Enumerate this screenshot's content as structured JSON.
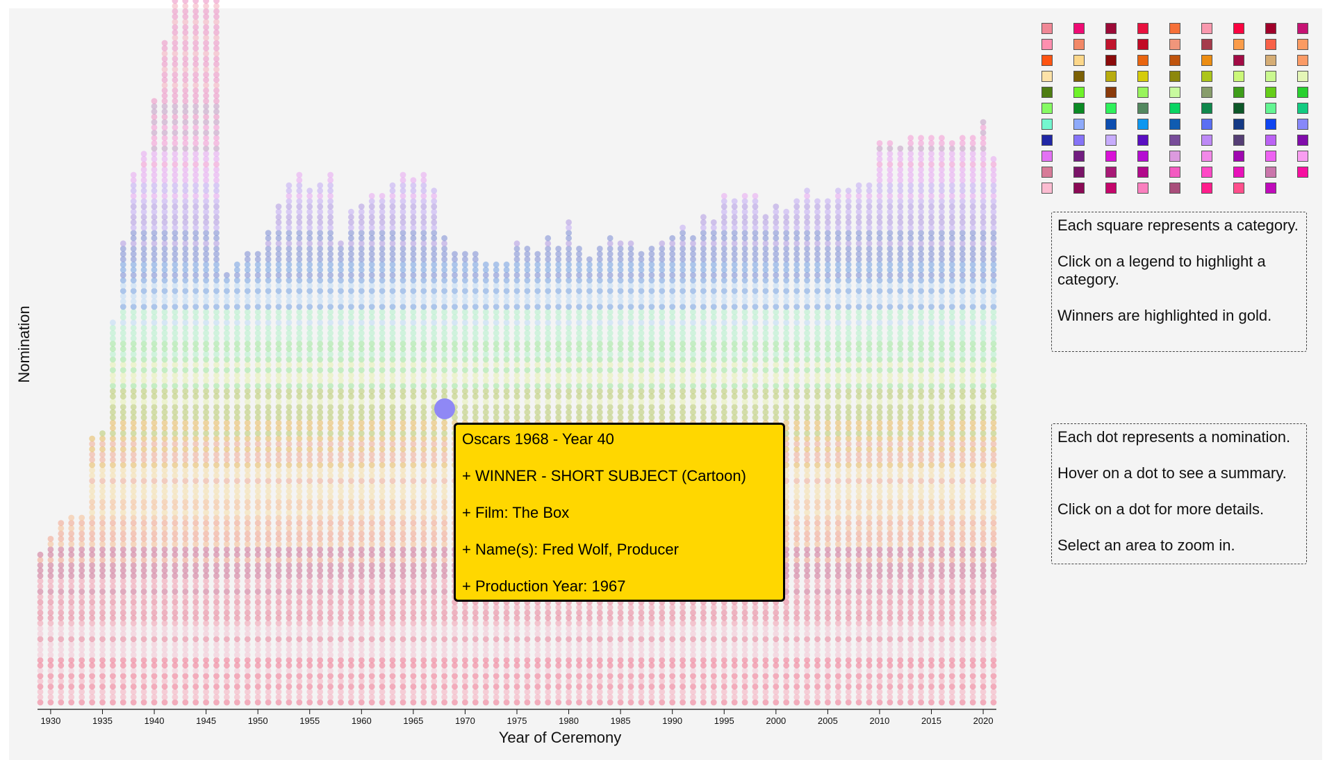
{
  "chart_data": {
    "type": "scatter",
    "title": "",
    "xlabel": "Year of Ceremony",
    "ylabel": "Nomination",
    "xlim": [
      1929,
      2021
    ],
    "x_ticks": [
      1930,
      1935,
      1940,
      1945,
      1950,
      1955,
      1960,
      1965,
      1970,
      1975,
      1980,
      1985,
      1990,
      1995,
      2000,
      2005,
      2010,
      2015,
      2020
    ],
    "years": [
      1929,
      1930,
      1931,
      1932,
      1933,
      1934,
      1935,
      1936,
      1937,
      1938,
      1939,
      1940,
      1941,
      1942,
      1943,
      1944,
      1945,
      1946,
      1947,
      1948,
      1949,
      1950,
      1951,
      1952,
      1953,
      1954,
      1955,
      1956,
      1957,
      1958,
      1959,
      1960,
      1961,
      1962,
      1963,
      1964,
      1965,
      1966,
      1967,
      1968,
      1969,
      1970,
      1971,
      1972,
      1973,
      1974,
      1975,
      1976,
      1977,
      1978,
      1979,
      1980,
      1981,
      1982,
      1983,
      1984,
      1985,
      1986,
      1987,
      1988,
      1989,
      1990,
      1991,
      1992,
      1993,
      1994,
      1995,
      1996,
      1997,
      1998,
      1999,
      2000,
      2001,
      2002,
      2003,
      2004,
      2005,
      2006,
      2007,
      2008,
      2009,
      2010,
      2011,
      2012,
      2013,
      2014,
      2015,
      2016,
      2017,
      2018,
      2019,
      2020,
      2021
    ],
    "nominations": [
      29,
      32,
      35,
      36,
      36,
      51,
      52,
      73,
      88,
      101,
      105,
      115,
      126,
      144,
      158,
      161,
      159,
      137,
      82,
      84,
      86,
      86,
      90,
      95,
      99,
      101,
      98,
      99,
      101,
      88,
      94,
      95,
      97,
      97,
      99,
      101,
      100,
      101,
      98,
      89,
      86,
      86,
      86,
      84,
      84,
      84,
      88,
      87,
      86,
      89,
      87,
      92,
      87,
      85,
      87,
      89,
      88,
      88,
      86,
      87,
      88,
      89,
      91,
      89,
      93,
      92,
      97,
      96,
      97,
      97,
      93,
      95,
      94,
      96,
      98,
      96,
      96,
      98,
      98,
      99,
      99,
      107,
      107,
      106,
      108,
      108,
      108,
      108,
      107,
      108,
      108,
      111,
      104
    ],
    "hovered_point": {
      "year": 1968,
      "index": 66
    }
  },
  "legend": {
    "colors": [
      [
        "#f08896",
        "#fe8faf",
        "#fe5412",
        "#fce2a8",
        "#4e7d13",
        "#86fb63",
        "#73f7cf",
        "#2127a5",
        "#e372f4",
        "#d77b98",
        "#fbbcd1"
      ],
      [
        "#ef0b74",
        "#f28867",
        "#fcd78a",
        "#7b6005",
        "#6ef229",
        "#0b8a24",
        "#8eaafa",
        "#8674f7",
        "#711d80",
        "#7a1468",
        "#8a0955"
      ],
      [
        "#9c0a37",
        "#c0142d",
        "#8b0a0a",
        "#b8ac0e",
        "#8a3a0b",
        "#2ff15b",
        "#0d4eb0",
        "#c7acfc",
        "#d912d7",
        "#a81976",
        "#c4066b"
      ],
      [
        "#e8113f",
        "#c20a26",
        "#e96510",
        "#d5cc0b",
        "#98f45c",
        "#53885f",
        "#0e97f0",
        "#5a0ec2",
        "#b50ed2",
        "#b20a8b",
        "#fa80bf"
      ],
      [
        "#f67038",
        "#f0967b",
        "#c0550e",
        "#8c870b",
        "#c8fa9e",
        "#0ad563",
        "#0f5cb1",
        "#784c9a",
        "#dc9ade",
        "#f459c1",
        "#a94d7b"
      ],
      [
        "#f999ae",
        "#a53b4b",
        "#ec8d12",
        "#acc51a",
        "#889d6c",
        "#10884c",
        "#5b6ff2",
        "#bd89f6",
        "#f289e8",
        "#ff49c6",
        "#ff1e8c"
      ],
      [
        "#fa0440",
        "#fa9c49",
        "#a20b45",
        "#cbf779",
        "#3e9d1a",
        "#0d5728",
        "#153a85",
        "#553e75",
        "#9f07b0",
        "#e811ba",
        "#ff4f8c"
      ],
      [
        "#a0002a",
        "#f86148",
        "#d5ad75",
        "#caf890",
        "#65cd19",
        "#63f592",
        "#0f45f0",
        "#bb62f4",
        "#ee62f2",
        "#ca76ab",
        "#c00bbb"
      ],
      [
        "#c61374",
        "#fb9b62",
        "#fb9b66",
        "#e4f6b7",
        "#29d02f",
        "#13cb81",
        "#8788fa",
        "#810cab",
        "#f99ef1",
        "#f70fa0"
      ]
    ]
  },
  "info_box_1": {
    "line1": "Each square represents a category.",
    "line2": "Click on a legend to highlight a category.",
    "line3": "Winners are highlighted in gold."
  },
  "info_box_2": {
    "line1": "Each dot represents a nomination.",
    "line2": "Hover on a dot to see a summary.",
    "line3": "Click on a dot for more details.",
    "line4": "Select an area to zoom in."
  },
  "tooltip": {
    "title": "Oscars 1968 - Year 40",
    "winner": "+ WINNER - SHORT SUBJECT (Cartoon)",
    "film": "+ Film: The Box",
    "names": "+ Name(s): Fred Wolf, Producer",
    "production_year": "+ Production Year: 1967"
  }
}
